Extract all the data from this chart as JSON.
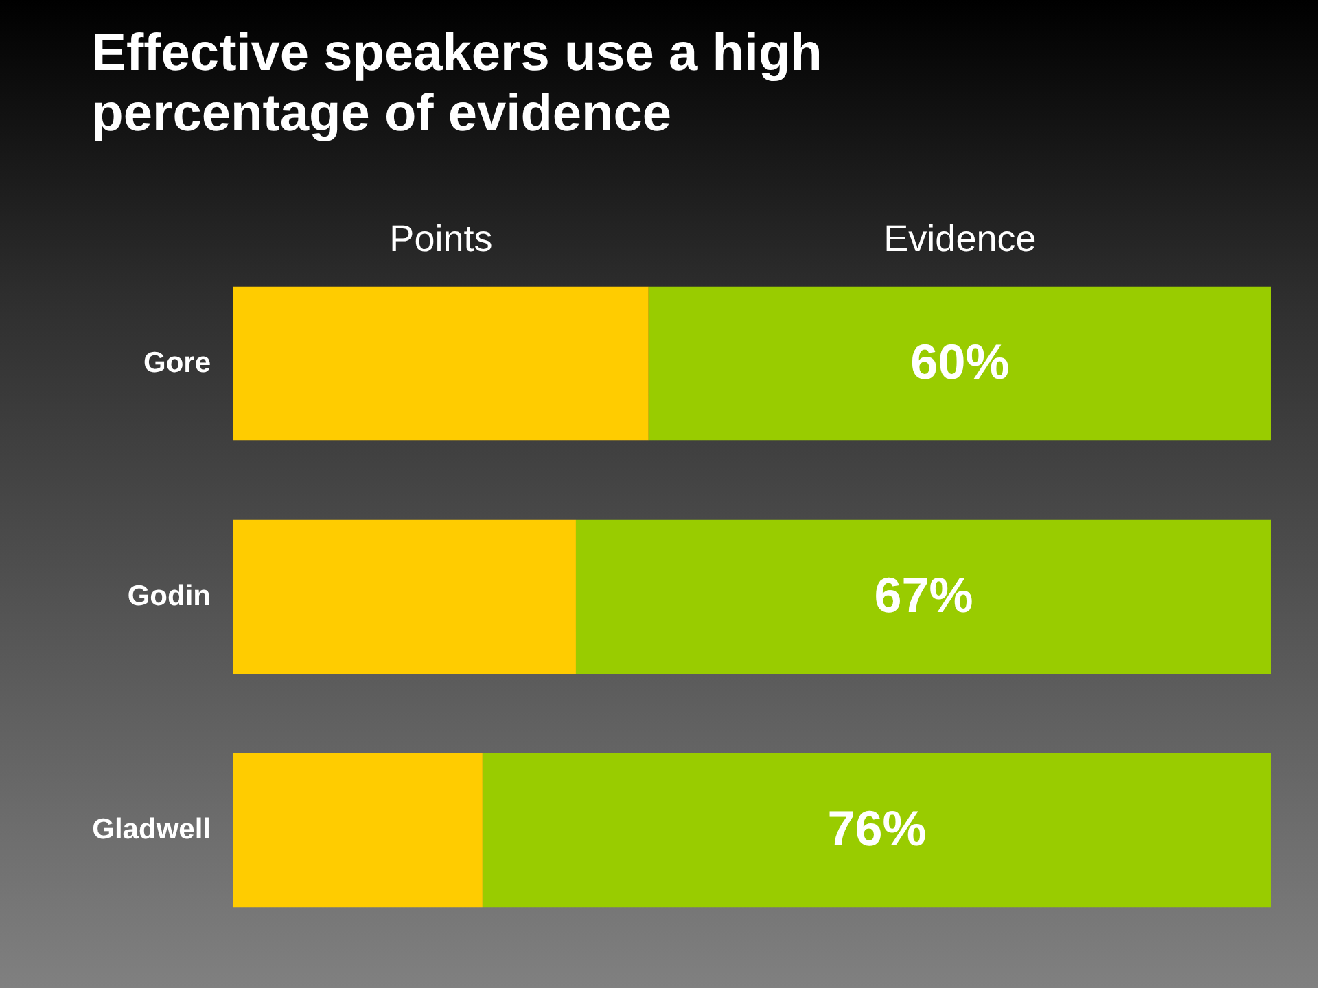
{
  "chart_data": {
    "type": "bar",
    "orientation": "horizontal",
    "stacked": true,
    "title": "Effective speakers use a high percentage of evidence",
    "categories": [
      "Gore",
      "Godin",
      "Gladwell"
    ],
    "xlim": [
      0,
      100
    ],
    "tick_labels": "y",
    "legend": false,
    "series": [
      {
        "name": "Points",
        "color": "#ffcc00",
        "values": [
          40,
          33,
          24
        ]
      },
      {
        "name": "Evidence",
        "color": "#99cc00",
        "values": [
          60,
          67,
          76
        ],
        "value_labels": [
          "60%",
          "67%",
          "76%"
        ]
      }
    ]
  }
}
